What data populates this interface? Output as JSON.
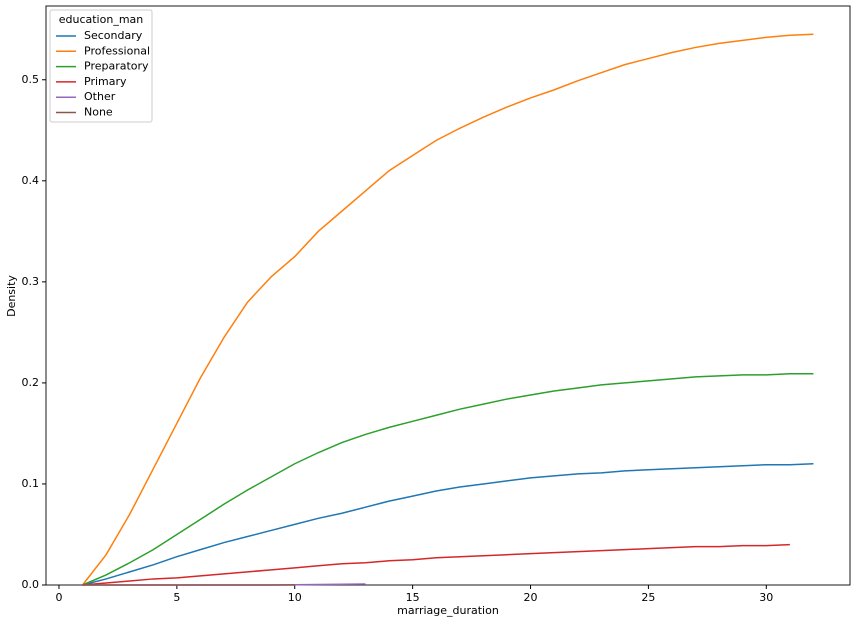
{
  "chart_data": {
    "type": "line",
    "x_label": "marriage_duration",
    "y_label": "Density",
    "legend_title": "education_man",
    "legend": "upper left",
    "x": [
      1,
      2,
      3,
      4,
      5,
      6,
      7,
      8,
      9,
      10,
      11,
      12,
      13,
      14,
      15,
      16,
      17,
      18,
      19,
      20,
      21,
      22,
      23,
      24,
      25,
      26,
      27,
      28,
      29,
      30,
      31,
      32
    ],
    "series": [
      {
        "name": "Secondary",
        "color": "#1f77b4",
        "values": [
          0,
          0.006,
          0.013,
          0.02,
          0.028,
          0.035,
          0.042,
          0.048,
          0.054,
          0.06,
          0.066,
          0.071,
          0.077,
          0.083,
          0.088,
          0.093,
          0.097,
          0.1,
          0.103,
          0.106,
          0.108,
          0.11,
          0.111,
          0.113,
          0.114,
          0.115,
          0.116,
          0.117,
          0.118,
          0.119,
          0.119,
          0.12
        ]
      },
      {
        "name": "Professional",
        "color": "#ff7f0e",
        "values": [
          0,
          0.03,
          0.07,
          0.115,
          0.16,
          0.205,
          0.245,
          0.28,
          0.305,
          0.325,
          0.35,
          0.37,
          0.39,
          0.41,
          0.425,
          0.44,
          0.452,
          0.463,
          0.473,
          0.482,
          0.49,
          0.499,
          0.507,
          0.515,
          0.521,
          0.527,
          0.532,
          0.536,
          0.539,
          0.542,
          0.544,
          0.545
        ]
      },
      {
        "name": "Preparatory",
        "color": "#2ca02c",
        "values": [
          0,
          0.01,
          0.022,
          0.035,
          0.05,
          0.065,
          0.08,
          0.094,
          0.107,
          0.12,
          0.131,
          0.141,
          0.149,
          0.156,
          0.162,
          0.168,
          0.174,
          0.179,
          0.184,
          0.188,
          0.192,
          0.195,
          0.198,
          0.2,
          0.202,
          0.204,
          0.206,
          0.207,
          0.208,
          0.208,
          0.209,
          0.209
        ]
      },
      {
        "name": "Primary",
        "color": "#d62728",
        "values": [
          0,
          0.002,
          0.004,
          0.006,
          0.007,
          0.009,
          0.011,
          0.013,
          0.015,
          0.017,
          0.019,
          0.021,
          0.022,
          0.024,
          0.025,
          0.027,
          0.028,
          0.029,
          0.03,
          0.031,
          0.032,
          0.033,
          0.034,
          0.035,
          0.036,
          0.037,
          0.038,
          0.038,
          0.039,
          0.039,
          0.04,
          null
        ]
      },
      {
        "name": "Other",
        "color": "#9467bd",
        "values": [
          0,
          0,
          0,
          0,
          0,
          0,
          0,
          0,
          0,
          0.0003,
          0.0005,
          0.0008,
          0.001,
          null,
          null,
          null,
          null,
          null,
          null,
          null,
          null,
          null,
          null,
          null,
          null,
          null,
          null,
          null,
          null,
          null,
          null,
          null
        ]
      },
      {
        "name": "None",
        "color": "#8c564b",
        "values": [
          0,
          0,
          0,
          0,
          0,
          0,
          0,
          0,
          0,
          0,
          null,
          null,
          null,
          null,
          null,
          null,
          null,
          null,
          null,
          null,
          null,
          null,
          null,
          null,
          null,
          null,
          null,
          null,
          null,
          null,
          null,
          null
        ]
      }
    ],
    "xlim": [
      -0.55,
      33.55
    ],
    "xticks": [
      0,
      5,
      10,
      15,
      20,
      25,
      30
    ],
    "ylim": [
      0,
      0.573
    ],
    "yticks": [
      {
        "value": 0,
        "label": "0.0"
      },
      {
        "value": 0.1,
        "label": "0.1"
      },
      {
        "value": 0.2,
        "label": "0.2"
      },
      {
        "value": 0.3,
        "label": "0.3"
      },
      {
        "value": 0.4,
        "label": "0.4"
      },
      {
        "value": 0.5,
        "label": "0.5"
      }
    ]
  }
}
